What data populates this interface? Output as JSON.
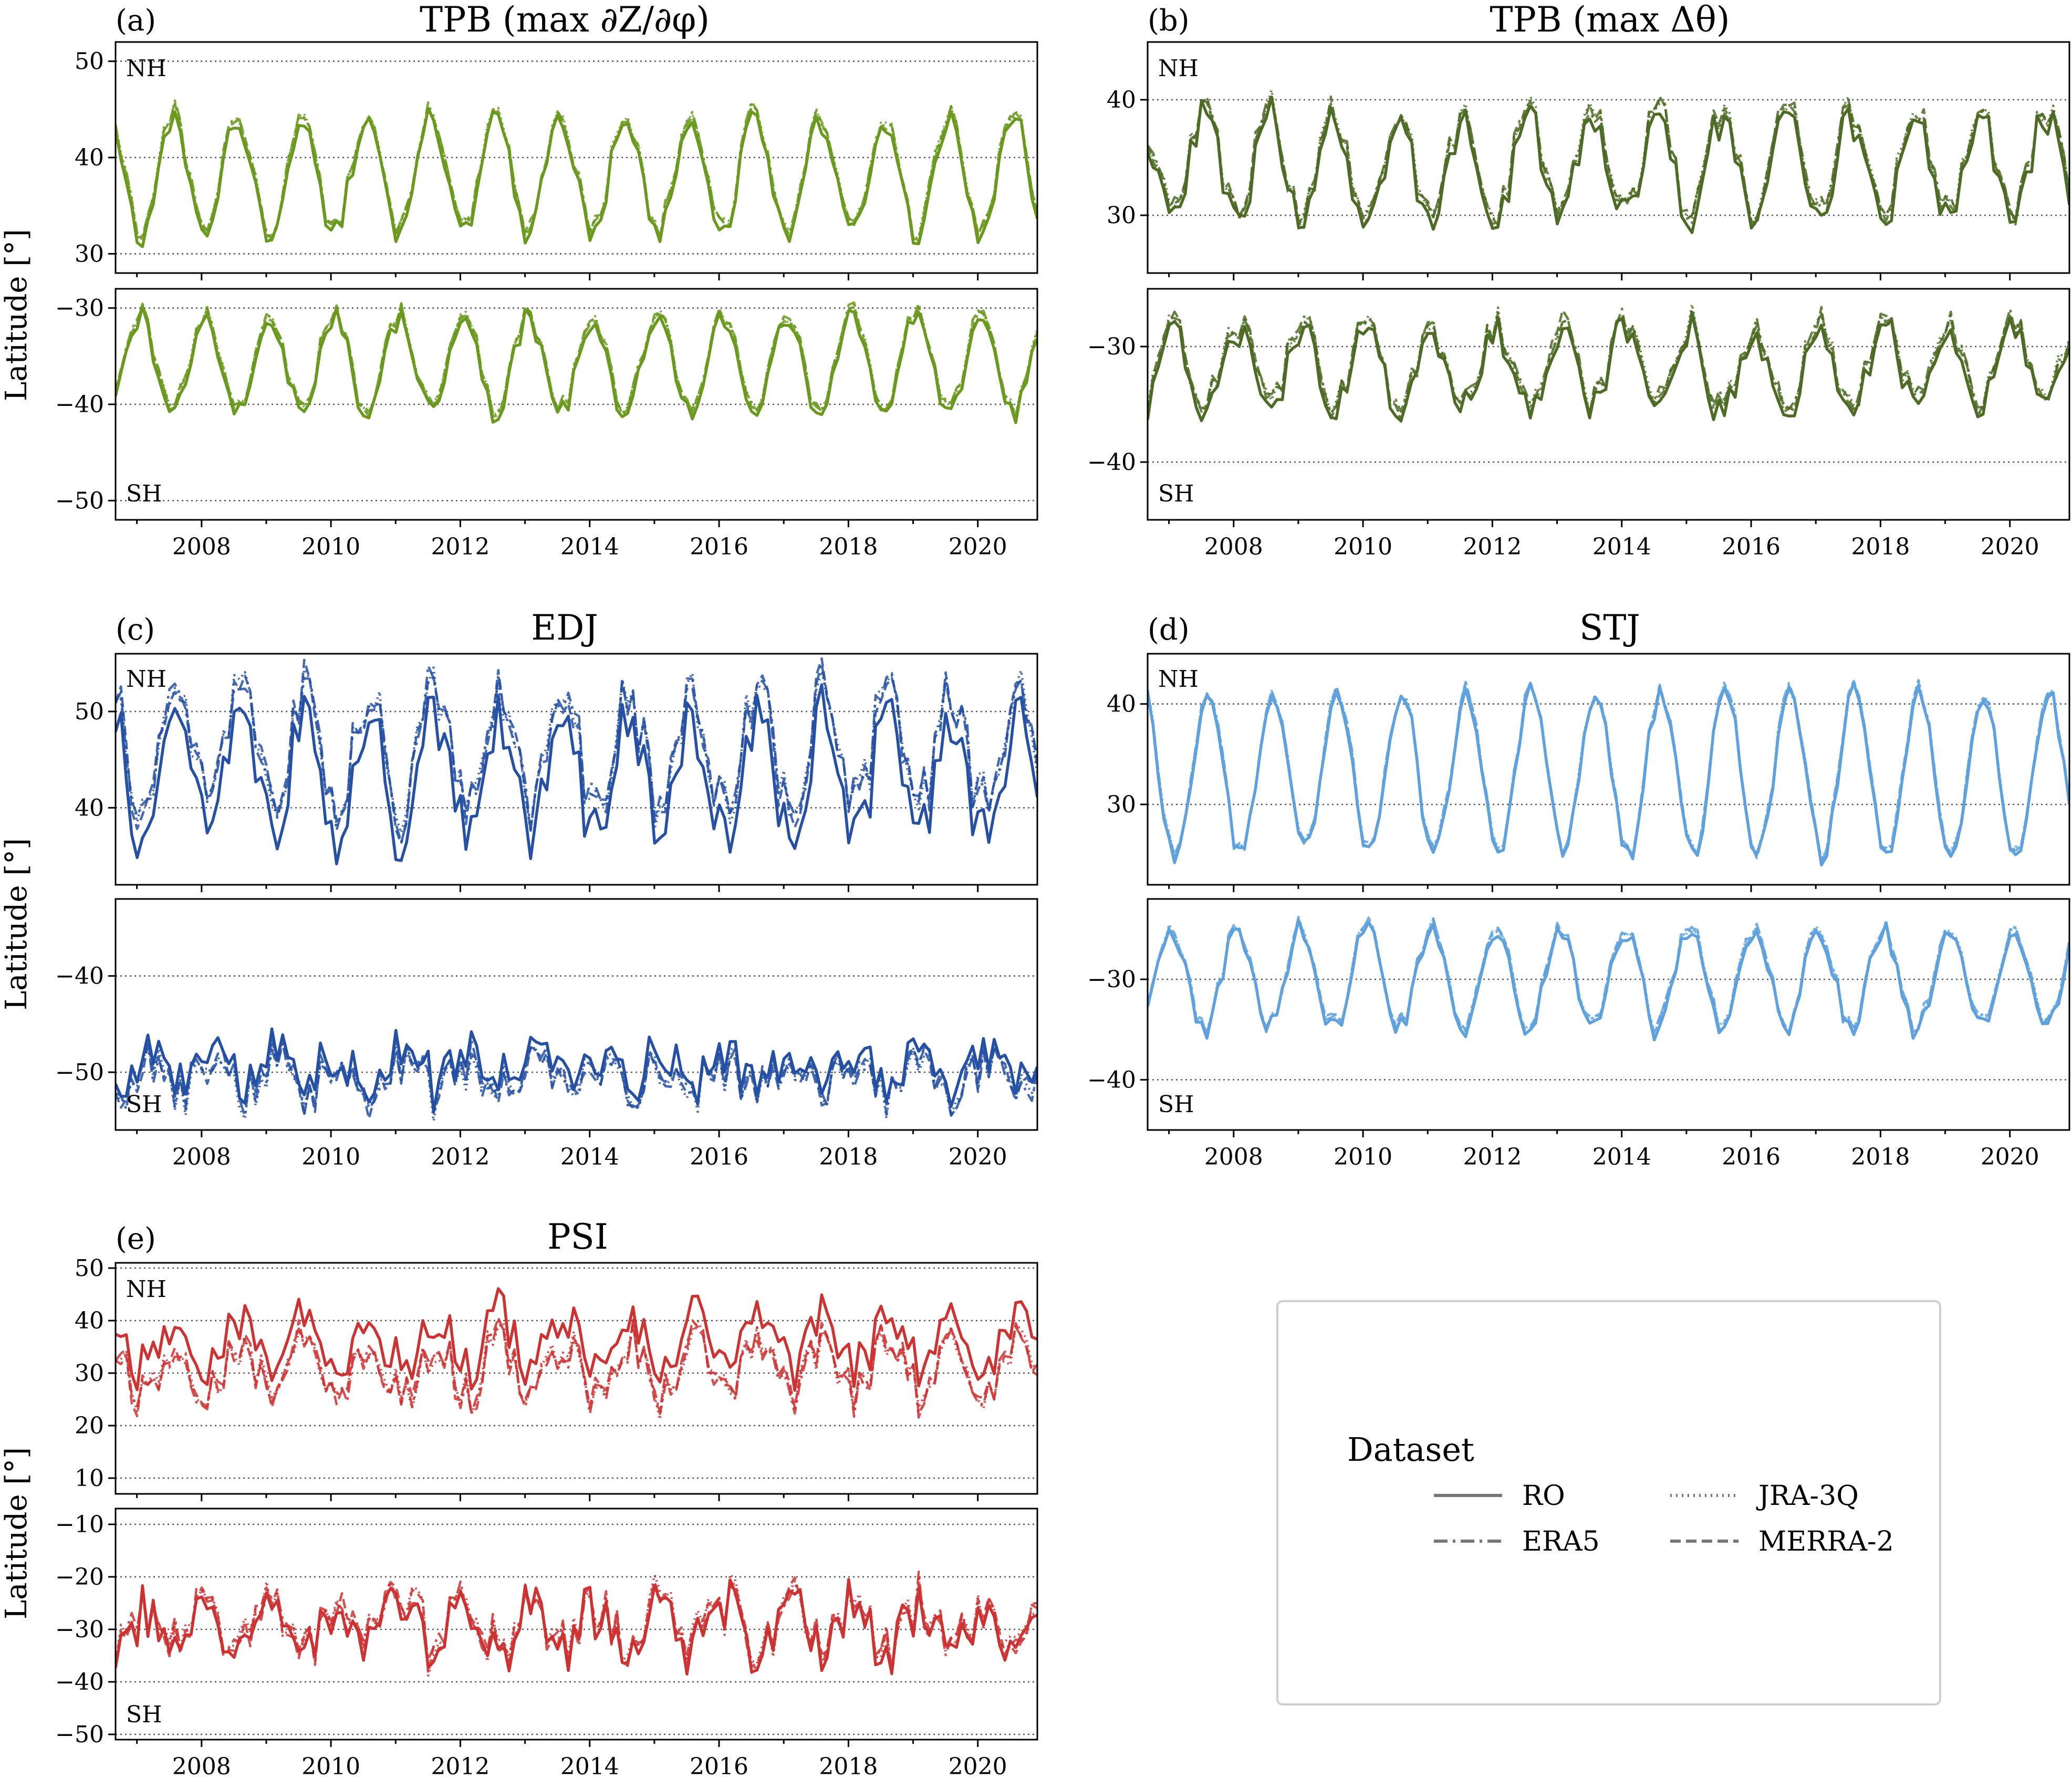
{
  "colors": {
    "tpb_dz": "#6a991e",
    "tpb_dtheta": "#4e6b25",
    "edj": "#2550a3",
    "stj": "#5ea1dc",
    "psi": "#cc3333",
    "legend_line": "#777777"
  },
  "shared_ylabel": "Latitude [°]",
  "hemisphere_labels": {
    "nh": "NH",
    "sh": "SH"
  },
  "xaxis": {
    "range": [
      2006.67,
      2020.92
    ],
    "ticks": [
      2008,
      2010,
      2012,
      2014,
      2016,
      2018,
      2020
    ]
  },
  "legend": {
    "title": "Dataset",
    "entries": [
      {
        "name": "RO",
        "style": "solid"
      },
      {
        "name": "ERA5",
        "style": "dashdot"
      },
      {
        "name": "JRA-3Q",
        "style": "dotted"
      },
      {
        "name": "MERRA-2",
        "style": "dashed"
      }
    ]
  },
  "chart_data": [
    {
      "panel": "(a)",
      "type": "line",
      "title": "TPB (max ∂Z/∂φ)",
      "color_key": "tpb_dz",
      "nh": {
        "ylim": [
          28,
          52
        ],
        "yticks": [
          30,
          40,
          50
        ],
        "grid": [
          30,
          40,
          50
        ],
        "mean": 38,
        "amp": 6,
        "peak_phase": 0.55,
        "noise": 1.2,
        "offset": 0.5
      },
      "sh": {
        "ylim": [
          -52,
          -28
        ],
        "yticks": [
          -30,
          -40,
          -50
        ],
        "grid": [
          -30,
          -40,
          -50
        ],
        "mean": -36,
        "amp": 5,
        "peak_phase": 0.05,
        "noise": 1.0,
        "offset": 0.5
      }
    },
    {
      "panel": "(b)",
      "type": "line",
      "title": "TPB (max Δθ)",
      "color_key": "tpb_dtheta",
      "nh": {
        "ylim": [
          25,
          45
        ],
        "yticks": [
          30,
          40
        ],
        "grid": [
          30,
          40
        ],
        "mean": 34,
        "amp": 4.5,
        "peak_phase": 0.55,
        "noise": 1.5,
        "offset": 0.6
      },
      "sh": {
        "ylim": [
          -45,
          -25
        ],
        "yticks": [
          -30,
          -40
        ],
        "grid": [
          -30,
          -40
        ],
        "mean": -32,
        "amp": 3.5,
        "peak_phase": 0.05,
        "noise": 1.5,
        "offset": 0.6
      }
    },
    {
      "panel": "(c)",
      "type": "line",
      "title": "EDJ",
      "color_key": "edj",
      "nh": {
        "ylim": [
          32,
          56
        ],
        "yticks": [
          40,
          50
        ],
        "grid": [
          40,
          50
        ],
        "mean": 43,
        "amp": 6,
        "peak_phase": 0.6,
        "noise": 3.0,
        "offset": 3.0
      },
      "sh": {
        "ylim": [
          -56,
          -32
        ],
        "yticks": [
          -40,
          -50
        ],
        "grid": [
          -40,
          -50
        ],
        "mean": -49.5,
        "amp": 1.5,
        "peak_phase": 0.1,
        "noise": 2.5,
        "offset": -1.0
      }
    },
    {
      "panel": "(d)",
      "type": "line",
      "title": "STJ",
      "color_key": "stj",
      "nh": {
        "ylim": [
          22,
          45
        ],
        "yticks": [
          30,
          40
        ],
        "grid": [
          30,
          40
        ],
        "mean": 33,
        "amp": 8,
        "peak_phase": 0.6,
        "noise": 1.0,
        "offset": 0.3
      },
      "sh": {
        "ylim": [
          -45,
          -22
        ],
        "yticks": [
          -30,
          -40
        ],
        "grid": [
          -30,
          -40
        ],
        "mean": -30,
        "amp": 5,
        "peak_phase": 0.05,
        "noise": 1.0,
        "offset": 0.3
      }
    },
    {
      "panel": "(e)",
      "type": "line",
      "title": "PSI",
      "color_key": "psi",
      "nh": {
        "ylim": [
          7,
          51
        ],
        "yticks": [
          10,
          20,
          30,
          40,
          50
        ],
        "grid": [
          10,
          20,
          30,
          40,
          50
        ],
        "mean": 36,
        "amp": 5,
        "peak_phase": 0.6,
        "noise": 4.0,
        "offset": -5.0
      },
      "sh": {
        "ylim": [
          -51,
          -7
        ],
        "yticks": [
          -10,
          -20,
          -30,
          -40,
          -50
        ],
        "grid": [
          -10,
          -20,
          -30,
          -40,
          -50
        ],
        "mean": -30,
        "amp": 4,
        "peak_phase": 0.1,
        "noise": 5.0,
        "offset": 1.0
      }
    }
  ]
}
